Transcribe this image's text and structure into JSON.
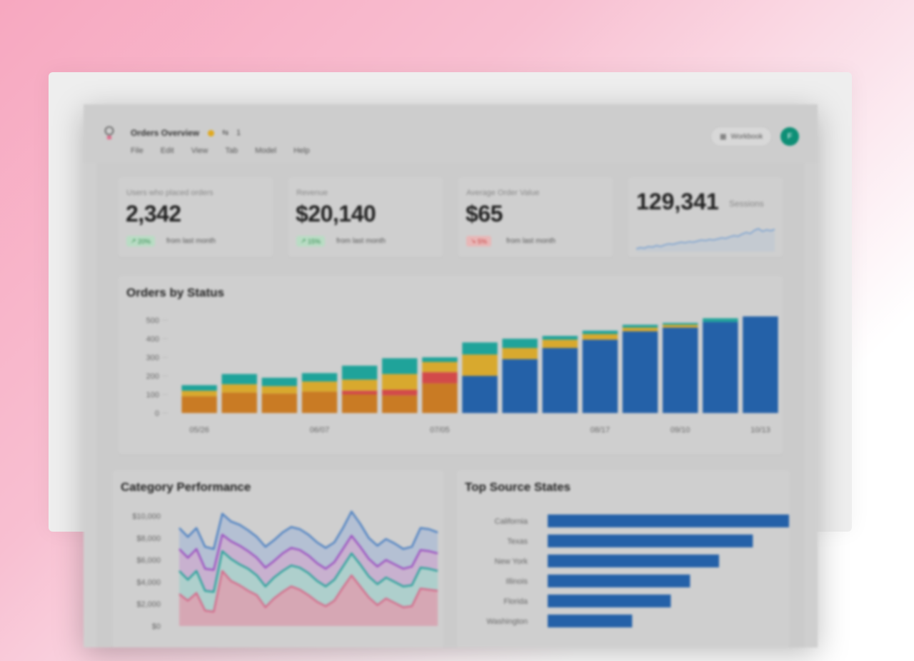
{
  "header": {
    "title": "Orders Overview",
    "share_count": "1",
    "menu": [
      "File",
      "Edit",
      "View",
      "Tab",
      "Model",
      "Help"
    ],
    "workbook_label": "Workbook",
    "avatar_initial": "F"
  },
  "kpis": [
    {
      "label": "Users who placed orders",
      "value": "2,342",
      "delta": "20%",
      "direction": "up",
      "note": "from last month"
    },
    {
      "label": "Revenue",
      "value": "$20,140",
      "delta": "15%",
      "direction": "up",
      "note": "from last month"
    },
    {
      "label": "Average Order Value",
      "value": "$65",
      "delta": "5%",
      "direction": "down",
      "note": "from last month"
    }
  ],
  "sessions": {
    "value": "129,341",
    "label": "Sessions",
    "trend": [
      18,
      20,
      19,
      22,
      21,
      24,
      22,
      25,
      27,
      26,
      28,
      30,
      29,
      31,
      30,
      32,
      34,
      33,
      35,
      34,
      36,
      38,
      37,
      40,
      42,
      41,
      45,
      48,
      46,
      52,
      55,
      50,
      53,
      51,
      54
    ]
  },
  "orders_chart": {
    "title": "Orders by Status",
    "chart_data": {
      "type": "bar",
      "stacked": true,
      "ylim": [
        0,
        500
      ],
      "yticks": [
        "500",
        "400",
        "300",
        "200",
        "100",
        "0"
      ],
      "xtick_labels": [
        {
          "label": "05/26",
          "index": 0
        },
        {
          "label": "06/07",
          "index": 3
        },
        {
          "label": "07/05",
          "index": 6
        },
        {
          "label": "08/17",
          "index": 10
        },
        {
          "label": "09/10",
          "index": 12
        },
        {
          "label": "10/13",
          "index": 14
        }
      ],
      "series": [
        {
          "color": "#2461a8",
          "values": [
            0,
            0,
            0,
            0,
            0,
            0,
            0,
            200,
            290,
            350,
            395,
            440,
            460,
            490,
            520
          ]
        },
        {
          "color": "#c97b24",
          "values": [
            90,
            110,
            105,
            115,
            100,
            95,
            160,
            0,
            0,
            0,
            0,
            0,
            0,
            0,
            0
          ]
        },
        {
          "color": "#d24a4a",
          "values": [
            0,
            0,
            0,
            0,
            20,
            30,
            60,
            0,
            0,
            0,
            0,
            0,
            0,
            0,
            0
          ]
        },
        {
          "color": "#d8a92e",
          "values": [
            30,
            45,
            40,
            55,
            60,
            85,
            55,
            115,
            60,
            45,
            30,
            20,
            15,
            0,
            0
          ]
        },
        {
          "color": "#1fa39a",
          "values": [
            30,
            55,
            45,
            45,
            75,
            85,
            25,
            65,
            50,
            20,
            18,
            15,
            10,
            20,
            0
          ]
        }
      ]
    }
  },
  "category_chart": {
    "title": "Category Performance",
    "chart_data": {
      "type": "area",
      "ylim": [
        0,
        10000
      ],
      "yticks": [
        "$10,000",
        "$8,000",
        "$6,000",
        "$4,000",
        "$2,000",
        "$0"
      ],
      "series": [
        {
          "color": "#d46a8a",
          "fill": "#d6a7b4",
          "values": [
            2900,
            2300,
            3000,
            1400,
            1300,
            5000,
            4100,
            3700,
            3200,
            2800,
            1700,
            2500,
            3100,
            3600,
            3300,
            2800,
            2200,
            1800,
            2300,
            3500,
            4600,
            3600,
            2600,
            1900,
            2500,
            2100,
            1700,
            1800,
            3400,
            3300,
            3200
          ]
        },
        {
          "color": "#27a19a",
          "fill": "#aecfcc",
          "values": [
            5000,
            4200,
            5000,
            3200,
            3100,
            6800,
            6100,
            5600,
            5200,
            4600,
            3600,
            4400,
            5000,
            5500,
            5300,
            4800,
            4100,
            3600,
            4200,
            5400,
            6600,
            5600,
            4500,
            3800,
            4400,
            4000,
            3600,
            3700,
            5300,
            5200,
            5000
          ]
        },
        {
          "color": "#9b4dc0",
          "fill": "#c8b1cf",
          "values": [
            7000,
            6200,
            7000,
            5200,
            5100,
            8300,
            7700,
            7300,
            6800,
            6200,
            5300,
            5900,
            6600,
            7100,
            6900,
            6400,
            5700,
            5200,
            5800,
            7000,
            8200,
            7200,
            6100,
            5400,
            6000,
            5600,
            5200,
            5400,
            6900,
            6800,
            6600
          ]
        },
        {
          "color": "#4a7fc1",
          "fill": "#b4c0d3",
          "values": [
            8900,
            8100,
            8900,
            7200,
            7000,
            10200,
            9500,
            9200,
            8700,
            8100,
            7200,
            7800,
            8500,
            9000,
            8800,
            8300,
            7600,
            7100,
            7600,
            8900,
            10400,
            9300,
            8000,
            7300,
            7900,
            7500,
            7000,
            7200,
            8900,
            8800,
            8500
          ]
        }
      ]
    }
  },
  "states_chart": {
    "title": "Top Source States",
    "chart_data": {
      "type": "bar",
      "orientation": "horizontal",
      "categories": [
        "California",
        "Texas",
        "New York",
        "Illinois",
        "Florida",
        "Washington"
      ],
      "values": [
        100,
        85,
        71,
        59,
        51,
        35
      ],
      "color": "#2461a8"
    }
  }
}
